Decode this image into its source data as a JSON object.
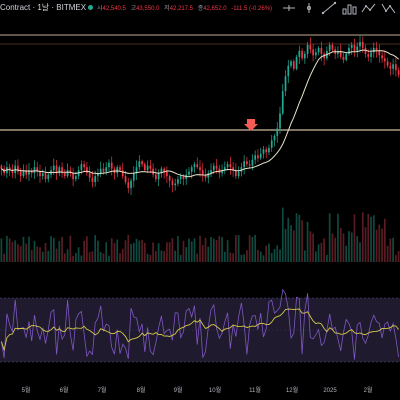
{
  "header": {
    "title": "Contract · 1날 · BITMEX",
    "ohlc": [
      {
        "label": "시",
        "value": "42,540.5"
      },
      {
        "label": "고",
        "value": "43,550.0"
      },
      {
        "label": "저",
        "value": "42,217.5"
      },
      {
        "label": "종",
        "value": "42,652.0"
      },
      {
        "label": "",
        "value": "-111.5 (-0.26%)"
      }
    ]
  },
  "toolbar": {
    "icons": [
      "horizontal-line-icon",
      "vertical-line-icon",
      "trend-line-icon",
      "bar-pattern-icon",
      "zigzag-icon",
      "zigzag-down-icon"
    ]
  },
  "colors": {
    "up": "#22ab94",
    "down": "#f23645",
    "ma": "#e8e4c9",
    "rsi": "#7e57c2",
    "rsi_ma": "#d4c84a",
    "rsi_band": "#1f1a2e",
    "level": "#ffe9c4",
    "arrow": "#f25c54"
  },
  "chart_data": {
    "type": "candlestick",
    "x_ticks": [
      "5월",
      "6월",
      "7월",
      "8월",
      "9월",
      "10월",
      "11월",
      "12월",
      "2025",
      "2월"
    ],
    "close_series": [
      0.83,
      0.8,
      0.84,
      0.82,
      0.8,
      0.85,
      0.81,
      0.78,
      0.82,
      0.79,
      0.82,
      0.8,
      0.84,
      0.81,
      0.78,
      0.8,
      0.76,
      0.79,
      0.82,
      0.85,
      0.8,
      0.84,
      0.8,
      0.78,
      0.82,
      0.8,
      0.76,
      0.78,
      0.82,
      0.86,
      0.84,
      0.8,
      0.77,
      0.74,
      0.78,
      0.8,
      0.83,
      0.81,
      0.84,
      0.87,
      0.83,
      0.8,
      0.84,
      0.82,
      0.78,
      0.74,
      0.7,
      0.75,
      0.8,
      0.84,
      0.88,
      0.86,
      0.82,
      0.85,
      0.83,
      0.79,
      0.76,
      0.8,
      0.83,
      0.81,
      0.78,
      0.75,
      0.72,
      0.73,
      0.76,
      0.78,
      0.76,
      0.79,
      0.81,
      0.84,
      0.86,
      0.84,
      0.82,
      0.79,
      0.77,
      0.8,
      0.82,
      0.85,
      0.83,
      0.8,
      0.82,
      0.84,
      0.86,
      0.84,
      0.82,
      0.78,
      0.81,
      0.84,
      0.88,
      0.86,
      0.85,
      0.89,
      0.92,
      0.9,
      0.93,
      0.96,
      0.94,
      0.97,
      1.02,
      1.05,
      1.1,
      1.2,
      1.35,
      1.45,
      1.52,
      1.55,
      1.5,
      1.58,
      1.62,
      1.57,
      1.6,
      1.66,
      1.63,
      1.59,
      1.61,
      1.64,
      1.6,
      1.57,
      1.62,
      1.66,
      1.63,
      1.6,
      1.62,
      1.58,
      1.56,
      1.6,
      1.64,
      1.66,
      1.62,
      1.65,
      1.68,
      1.64,
      1.6,
      1.58,
      1.61,
      1.64,
      1.62,
      1.59,
      1.57,
      1.55,
      1.52,
      1.5,
      1.53,
      1.49,
      1.46
    ],
    "moving_average": true,
    "annotations": [
      "horizontal-level-top",
      "horizontal-level-middle",
      "down-arrow-marker"
    ],
    "volume": true,
    "oscillator": {
      "type": "rsi",
      "with_signal_line": true,
      "band": true
    }
  }
}
